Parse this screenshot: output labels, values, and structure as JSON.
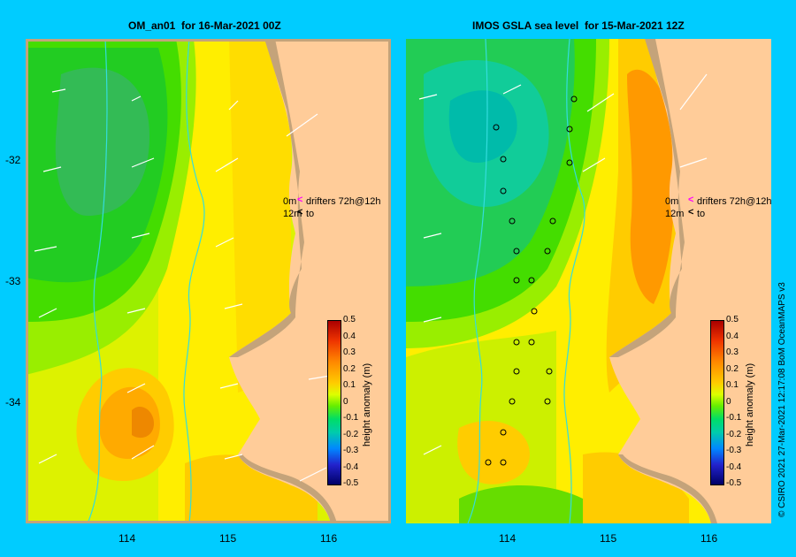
{
  "left_panel": {
    "title": "OM_an01  for 16-Mar-2021 00Z"
  },
  "right_panel": {
    "title": "IMOS GSLA sea level  for 15-Mar-2021 12Z"
  },
  "axes": {
    "lat_ticks": [
      "-32",
      "-33",
      "-34"
    ],
    "lon_ticks": [
      "114",
      "115",
      "116"
    ]
  },
  "colorbar": {
    "label": "height anomaly (m)",
    "ticks": [
      "0.5",
      "0.4",
      "0.3",
      "0.2",
      "0.1",
      "0",
      "-0.1",
      "-0.2",
      "-0.3",
      "-0.4",
      "-0.5"
    ],
    "colors": {
      "max": "#aa0000",
      "mid_high": "#ff8800",
      "zero": "#ddff00",
      "mid_low": "#00cc88",
      "min": "#000066"
    }
  },
  "legend": {
    "line1_depth": "0m",
    "line1_text": "drifters 72h@12h",
    "line2_depth": "12m",
    "line2_text": "to",
    "drifter_color": "#ff00ff"
  },
  "credit": "© CSIRO 2021    27-Mar-2021 12:17:08 BoM OceanMAPS v3",
  "colors": {
    "background": "#00ccff",
    "land": "#ffcc99",
    "coast_shelf": "#c4a37a",
    "isobath": "#33dddd"
  }
}
